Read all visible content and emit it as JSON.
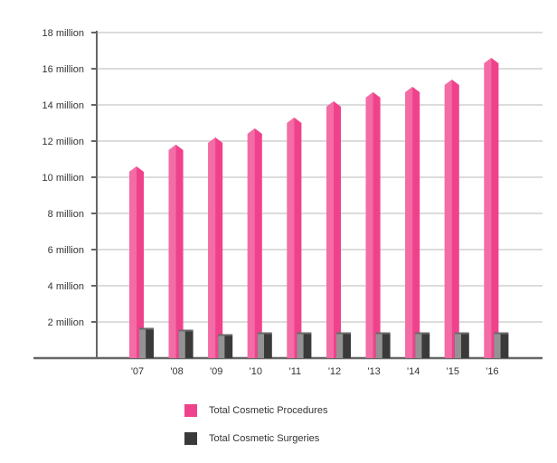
{
  "chart_data": {
    "type": "bar",
    "title": "",
    "xlabel": "",
    "ylabel": "",
    "categories": [
      "'07",
      "'08",
      "'09",
      "'10",
      "'11",
      "'12",
      "'13",
      "'14",
      "'15",
      "'16"
    ],
    "series": [
      {
        "name": "Total Cosmetic Procedures",
        "values": [
          10.6,
          11.8,
          12.2,
          12.7,
          13.3,
          14.2,
          14.7,
          15.0,
          15.4,
          16.6
        ],
        "color": "#f0428c"
      },
      {
        "name": "Total Cosmetic Surgeries",
        "values": [
          1.6,
          1.5,
          1.25,
          1.35,
          1.35,
          1.35,
          1.35,
          1.35,
          1.35,
          1.35
        ],
        "color": "#3a3a3a"
      }
    ],
    "y_ticks": [
      2,
      4,
      6,
      8,
      10,
      12,
      14,
      16,
      18
    ],
    "y_tick_labels": [
      "2 million",
      "4 million",
      "6 million",
      "8 million",
      "10 million",
      "12 million",
      "14 million",
      "16 million",
      "18 million"
    ],
    "ylim": [
      0,
      18
    ],
    "grid": true,
    "legend_position": "bottom"
  },
  "legend": {
    "items": [
      {
        "label": "Total Cosmetic Procedures",
        "color": "#f0428c"
      },
      {
        "label": "Total Cosmetic Surgeries",
        "color": "#3a3a3a"
      }
    ]
  }
}
